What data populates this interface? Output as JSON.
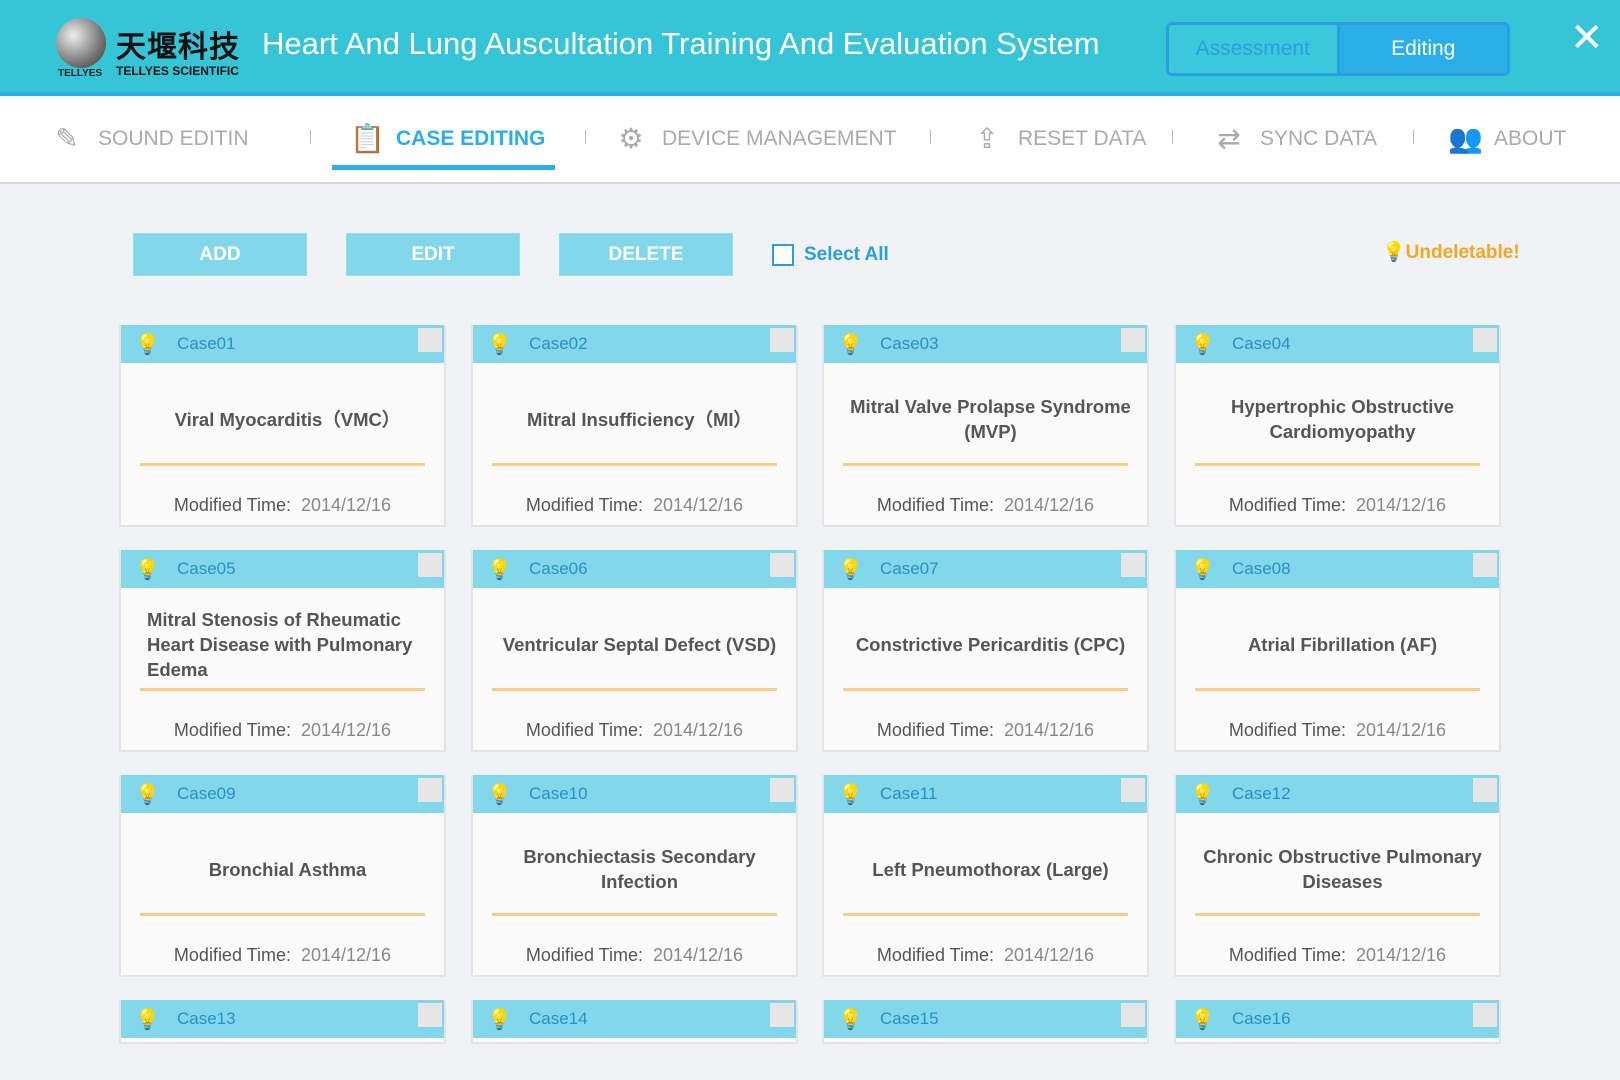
{
  "header": {
    "logo_cn": "天堰科技",
    "logo_en": "TELLYES SCIENTIFIC",
    "logo_mark": "TELLYES",
    "title": "Heart And Lung Auscultation Training And Evaluation System",
    "modes": [
      "Assessment",
      "Editing"
    ],
    "active_mode": "Editing"
  },
  "nav": [
    {
      "label": "SOUND EDITIN",
      "icon": "edit-icon",
      "active": false
    },
    {
      "label": "CASE EDITING",
      "icon": "clipboard-icon",
      "active": true
    },
    {
      "label": "DEVICE MANAGEMENT",
      "icon": "gear-icon",
      "active": false
    },
    {
      "label": "RESET DATA",
      "icon": "reset-icon",
      "active": false
    },
    {
      "label": "SYNC DATA",
      "icon": "sync-icon",
      "active": false
    },
    {
      "label": "ABOUT",
      "icon": "users-icon",
      "active": false
    }
  ],
  "toolbar": {
    "add": "ADD",
    "edit": "EDIT",
    "delete": "DELETE",
    "select_all": "Select All",
    "undeletable": "Undeletable!"
  },
  "colors": {
    "header": "#36c5d7",
    "accent": "#2aaee8",
    "card_header": "#83d7ea",
    "warning": "#f5a623"
  },
  "modified_label": "Modified Time:",
  "cases": [
    {
      "id": "Case01",
      "name": "Viral Myocarditis（VMC）",
      "date": "2014/12/16"
    },
    {
      "id": "Case02",
      "name": "Mitral Insufficiency（MI）",
      "date": "2014/12/16"
    },
    {
      "id": "Case03",
      "name": "Mitral Valve Prolapse Syndrome (MVP)",
      "date": "2014/12/16"
    },
    {
      "id": "Case04",
      "name": "Hypertrophic Obstructive Cardiomyopathy",
      "date": "2014/12/16"
    },
    {
      "id": "Case05",
      "name": "Mitral Stenosis of Rheumatic Heart Disease with Pulmonary Edema",
      "date": "2014/12/16"
    },
    {
      "id": "Case06",
      "name": "Ventricular Septal Defect (VSD)",
      "date": "2014/12/16"
    },
    {
      "id": "Case07",
      "name": "Constrictive Pericarditis (CPC)",
      "date": "2014/12/16"
    },
    {
      "id": "Case08",
      "name": "Atrial Fibrillation (AF)",
      "date": "2014/12/16"
    },
    {
      "id": "Case09",
      "name": "Bronchial Asthma",
      "date": "2014/12/16"
    },
    {
      "id": "Case10",
      "name": "Bronchiectasis Secondary Infection",
      "date": "2014/12/16"
    },
    {
      "id": "Case11",
      "name": "Left Pneumothorax (Large)",
      "date": "2014/12/16"
    },
    {
      "id": "Case12",
      "name": "Chronic Obstructive Pulmonary Diseases",
      "date": "2014/12/16"
    },
    {
      "id": "Case13"
    },
    {
      "id": "Case14"
    },
    {
      "id": "Case15"
    },
    {
      "id": "Case16"
    }
  ]
}
